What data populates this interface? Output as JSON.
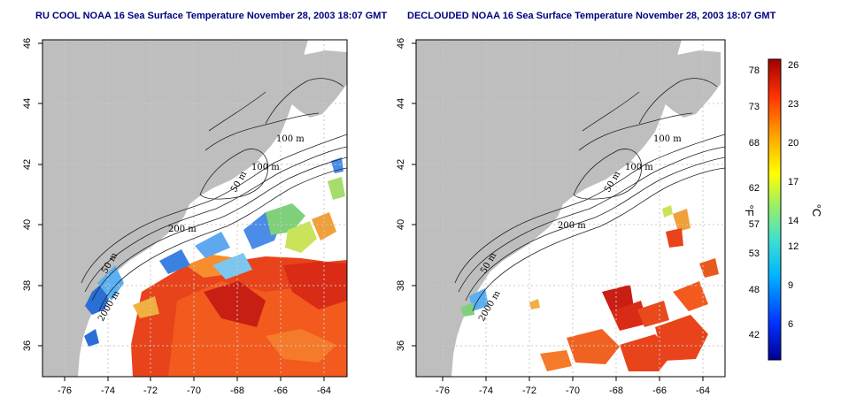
{
  "titles": {
    "left": "RU COOL NOAA 16 Sea Surface Temperature November 28, 2003 18:07 GMT",
    "right": "DECLOUDED NOAA 16 Sea Surface Temperature November 28, 2003 18:07 GMT"
  },
  "axes": {
    "lon_ticks": [
      "-76",
      "-74",
      "-72",
      "-70",
      "-68",
      "-66",
      "-64"
    ],
    "lat_ticks": [
      "36",
      "38",
      "40",
      "42",
      "44",
      "46"
    ]
  },
  "contour_labels": {
    "left": [
      "100 m",
      "100 m",
      "50 m",
      "200 m",
      "50 m",
      "2000 m"
    ],
    "right": [
      "100 m",
      "100 m",
      "50 m",
      "200 m",
      "50 m",
      "2000 m"
    ]
  },
  "colorbar": {
    "fahrenheit_label": "°F",
    "celsius_label": "°C",
    "fahrenheit_ticks": [
      "78",
      "73",
      "68",
      "62",
      "57",
      "53",
      "48",
      "42"
    ],
    "celsius_ticks": [
      "26",
      "23",
      "20",
      "17",
      "14",
      "12",
      "9",
      "6"
    ]
  },
  "colors": {
    "land": "#bebebe",
    "grid": "#c8c8c8",
    "warm": "#e8431a",
    "hot": "#c81e14",
    "cool": "#2a6fd6",
    "mid": "#7fd07a"
  }
}
